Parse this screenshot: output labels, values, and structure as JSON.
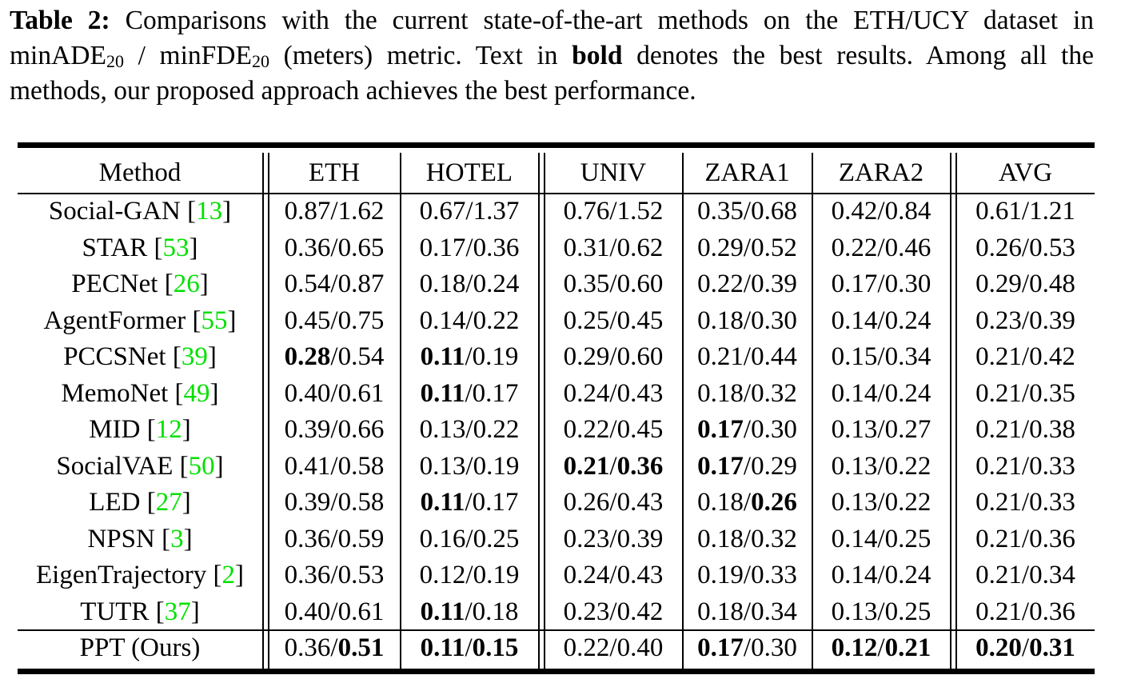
{
  "caption": {
    "label": "Table 2:",
    "text_1": " Comparisons with the current state-of-the-art methods on the ETH/UCY dataset in minADE",
    "sub_1": "20",
    "text_2": " / minFDE",
    "sub_2": "20",
    "text_3": " (meters) metric. Text in ",
    "bold_word": "bold",
    "text_4": " denotes the best results. Among all the methods, our proposed approach achieves the best performance."
  },
  "table": {
    "headers": [
      "Method",
      "ETH",
      "HOTEL",
      "UNIV",
      "ZARA1",
      "ZARA2",
      "AVG"
    ],
    "rows": [
      {
        "method": "Social-GAN",
        "ref": "13",
        "cells": [
          [
            "0.87",
            "1.62"
          ],
          [
            "0.67",
            "1.37"
          ],
          [
            "0.76",
            "1.52"
          ],
          [
            "0.35",
            "0.68"
          ],
          [
            "0.42",
            "0.84"
          ],
          [
            "0.61",
            "1.21"
          ]
        ],
        "bold": [
          [
            0,
            0
          ],
          [
            0,
            0
          ],
          [
            0,
            0
          ],
          [
            0,
            0
          ],
          [
            0,
            0
          ],
          [
            0,
            0
          ]
        ]
      },
      {
        "method": "STAR",
        "ref": "53",
        "cells": [
          [
            "0.36",
            "0.65"
          ],
          [
            "0.17",
            "0.36"
          ],
          [
            "0.31",
            "0.62"
          ],
          [
            "0.29",
            "0.52"
          ],
          [
            "0.22",
            "0.46"
          ],
          [
            "0.26",
            "0.53"
          ]
        ],
        "bold": [
          [
            0,
            0
          ],
          [
            0,
            0
          ],
          [
            0,
            0
          ],
          [
            0,
            0
          ],
          [
            0,
            0
          ],
          [
            0,
            0
          ]
        ]
      },
      {
        "method": "PECNet",
        "ref": "26",
        "cells": [
          [
            "0.54",
            "0.87"
          ],
          [
            "0.18",
            "0.24"
          ],
          [
            "0.35",
            "0.60"
          ],
          [
            "0.22",
            "0.39"
          ],
          [
            "0.17",
            "0.30"
          ],
          [
            "0.29",
            "0.48"
          ]
        ],
        "bold": [
          [
            0,
            0
          ],
          [
            0,
            0
          ],
          [
            0,
            0
          ],
          [
            0,
            0
          ],
          [
            0,
            0
          ],
          [
            0,
            0
          ]
        ]
      },
      {
        "method": "AgentFormer",
        "ref": "55",
        "cells": [
          [
            "0.45",
            "0.75"
          ],
          [
            "0.14",
            "0.22"
          ],
          [
            "0.25",
            "0.45"
          ],
          [
            "0.18",
            "0.30"
          ],
          [
            "0.14",
            "0.24"
          ],
          [
            "0.23",
            "0.39"
          ]
        ],
        "bold": [
          [
            0,
            0
          ],
          [
            0,
            0
          ],
          [
            0,
            0
          ],
          [
            0,
            0
          ],
          [
            0,
            0
          ],
          [
            0,
            0
          ]
        ]
      },
      {
        "method": "PCCSNet",
        "ref": "39",
        "cells": [
          [
            "0.28",
            "0.54"
          ],
          [
            "0.11",
            "0.19"
          ],
          [
            "0.29",
            "0.60"
          ],
          [
            "0.21",
            "0.44"
          ],
          [
            "0.15",
            "0.34"
          ],
          [
            "0.21",
            "0.42"
          ]
        ],
        "bold": [
          [
            1,
            0
          ],
          [
            1,
            0
          ],
          [
            0,
            0
          ],
          [
            0,
            0
          ],
          [
            0,
            0
          ],
          [
            0,
            0
          ]
        ]
      },
      {
        "method": "MemoNet",
        "ref": "49",
        "cells": [
          [
            "0.40",
            "0.61"
          ],
          [
            "0.11",
            "0.17"
          ],
          [
            "0.24",
            "0.43"
          ],
          [
            "0.18",
            "0.32"
          ],
          [
            "0.14",
            "0.24"
          ],
          [
            "0.21",
            "0.35"
          ]
        ],
        "bold": [
          [
            0,
            0
          ],
          [
            1,
            0
          ],
          [
            0,
            0
          ],
          [
            0,
            0
          ],
          [
            0,
            0
          ],
          [
            0,
            0
          ]
        ]
      },
      {
        "method": "MID",
        "ref": "12",
        "cells": [
          [
            "0.39",
            "0.66"
          ],
          [
            "0.13",
            "0.22"
          ],
          [
            "0.22",
            "0.45"
          ],
          [
            "0.17",
            "0.30"
          ],
          [
            "0.13",
            "0.27"
          ],
          [
            "0.21",
            "0.38"
          ]
        ],
        "bold": [
          [
            0,
            0
          ],
          [
            0,
            0
          ],
          [
            0,
            0
          ],
          [
            1,
            0
          ],
          [
            0,
            0
          ],
          [
            0,
            0
          ]
        ]
      },
      {
        "method": "SocialVAE",
        "ref": "50",
        "cells": [
          [
            "0.41",
            "0.58"
          ],
          [
            "0.13",
            "0.19"
          ],
          [
            "0.21",
            "0.36"
          ],
          [
            "0.17",
            "0.29"
          ],
          [
            "0.13",
            "0.22"
          ],
          [
            "0.21",
            "0.33"
          ]
        ],
        "bold": [
          [
            0,
            0
          ],
          [
            0,
            0
          ],
          [
            1,
            1
          ],
          [
            1,
            0
          ],
          [
            0,
            0
          ],
          [
            0,
            0
          ]
        ]
      },
      {
        "method": "LED",
        "ref": "27",
        "cells": [
          [
            "0.39",
            "0.58"
          ],
          [
            "0.11",
            "0.17"
          ],
          [
            "0.26",
            "0.43"
          ],
          [
            "0.18",
            "0.26"
          ],
          [
            "0.13",
            "0.22"
          ],
          [
            "0.21",
            "0.33"
          ]
        ],
        "bold": [
          [
            0,
            0
          ],
          [
            1,
            0
          ],
          [
            0,
            0
          ],
          [
            0,
            1
          ],
          [
            0,
            0
          ],
          [
            0,
            0
          ]
        ]
      },
      {
        "method": "NPSN",
        "ref": "3",
        "cells": [
          [
            "0.36",
            "0.59"
          ],
          [
            "0.16",
            "0.25"
          ],
          [
            "0.23",
            "0.39"
          ],
          [
            "0.18",
            "0.32"
          ],
          [
            "0.14",
            "0.25"
          ],
          [
            "0.21",
            "0.36"
          ]
        ],
        "bold": [
          [
            0,
            0
          ],
          [
            0,
            0
          ],
          [
            0,
            0
          ],
          [
            0,
            0
          ],
          [
            0,
            0
          ],
          [
            0,
            0
          ]
        ]
      },
      {
        "method": "EigenTrajectory",
        "ref": "2",
        "cells": [
          [
            "0.36",
            "0.53"
          ],
          [
            "0.12",
            "0.19"
          ],
          [
            "0.24",
            "0.43"
          ],
          [
            "0.19",
            "0.33"
          ],
          [
            "0.14",
            "0.24"
          ],
          [
            "0.21",
            "0.34"
          ]
        ],
        "bold": [
          [
            0,
            0
          ],
          [
            0,
            0
          ],
          [
            0,
            0
          ],
          [
            0,
            0
          ],
          [
            0,
            0
          ],
          [
            0,
            0
          ]
        ]
      },
      {
        "method": "TUTR",
        "ref": "37",
        "cells": [
          [
            "0.40",
            "0.61"
          ],
          [
            "0.11",
            "0.18"
          ],
          [
            "0.23",
            "0.42"
          ],
          [
            "0.18",
            "0.34"
          ],
          [
            "0.13",
            "0.25"
          ],
          [
            "0.21",
            "0.36"
          ]
        ],
        "bold": [
          [
            0,
            0
          ],
          [
            1,
            0
          ],
          [
            0,
            0
          ],
          [
            0,
            0
          ],
          [
            0,
            0
          ],
          [
            0,
            0
          ]
        ]
      }
    ],
    "ours": {
      "method": "PPT (Ours)",
      "cells": [
        [
          "0.36",
          "0.51"
        ],
        [
          "0.11",
          "0.15"
        ],
        [
          "0.22",
          "0.40"
        ],
        [
          "0.17",
          "0.30"
        ],
        [
          "0.12",
          "0.21"
        ],
        [
          "0.20",
          "0.31"
        ]
      ],
      "bold": [
        [
          0,
          1
        ],
        [
          1,
          1
        ],
        [
          0,
          0
        ],
        [
          1,
          0
        ],
        [
          1,
          1
        ],
        [
          1,
          1
        ]
      ]
    }
  }
}
